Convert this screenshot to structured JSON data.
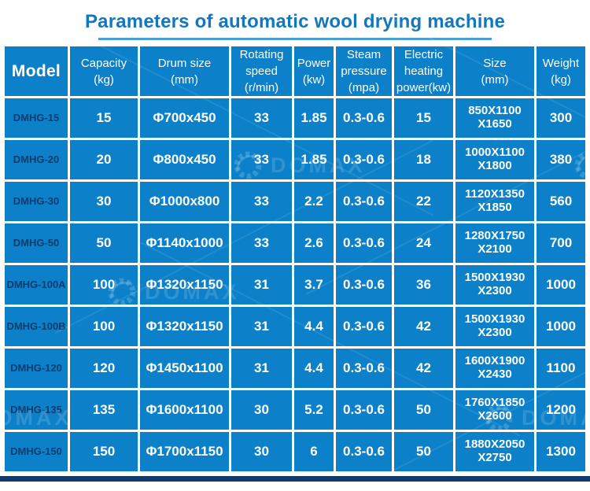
{
  "title": "Parameters of automatic wool drying machine",
  "watermark_text": "DOMAX",
  "colors": {
    "cell_blue": "#0c81c9",
    "model_text": "#0b3c6e",
    "header_text": "#ffffff",
    "title_blue": "#1377bd",
    "underline_blue": "#4aa0d8",
    "bottom_bar": "#0b3c70"
  },
  "chart_data": {
    "type": "table",
    "title": "Parameters of automatic wool drying machine",
    "columns": [
      {
        "key": "model",
        "label": "Model"
      },
      {
        "key": "capacity",
        "label": "Capacity\n(kg)"
      },
      {
        "key": "drum",
        "label": "Drum size\n(mm)"
      },
      {
        "key": "speed",
        "label": "Rotating\nspeed\n(r/min)"
      },
      {
        "key": "power",
        "label": "Power\n(kw)"
      },
      {
        "key": "steam",
        "label": "Steam\npressure\n(mpa)"
      },
      {
        "key": "heating",
        "label": "Electric\nheating\npower(kw)"
      },
      {
        "key": "size",
        "label": "Size\n(mm)"
      },
      {
        "key": "weight",
        "label": "Weight\n(kg)"
      }
    ],
    "rows": [
      {
        "model": "DMHG-15",
        "capacity": "15",
        "drum": "Φ700x450",
        "speed": "33",
        "power": "1.85",
        "steam": "0.3-0.6",
        "heating": "15",
        "size": "850X1100\nX1650",
        "weight": "300"
      },
      {
        "model": "DMHG-20",
        "capacity": "20",
        "drum": "Φ800x450",
        "speed": "33",
        "power": "1.85",
        "steam": "0.3-0.6",
        "heating": "18",
        "size": "1000X1100\nX1800",
        "weight": "380"
      },
      {
        "model": "DMHG-30",
        "capacity": "30",
        "drum": "Φ1000x800",
        "speed": "33",
        "power": "2.2",
        "steam": "0.3-0.6",
        "heating": "22",
        "size": "1120X1350\nX1850",
        "weight": "560"
      },
      {
        "model": "DMHG-50",
        "capacity": "50",
        "drum": "Φ1140x1000",
        "speed": "33",
        "power": "2.6",
        "steam": "0.3-0.6",
        "heating": "24",
        "size": "1280X1750\nX2100",
        "weight": "700"
      },
      {
        "model": "DMHG-100A",
        "capacity": "100",
        "drum": "Φ1320x1150",
        "speed": "31",
        "power": "3.7",
        "steam": "0.3-0.6",
        "heating": "36",
        "size": "1500X1930\nX2300",
        "weight": "1000"
      },
      {
        "model": "DMHG-100B",
        "capacity": "100",
        "drum": "Φ1320x1150",
        "speed": "31",
        "power": "4.4",
        "steam": "0.3-0.6",
        "heating": "42",
        "size": "1500X1930\nX2300",
        "weight": "1000"
      },
      {
        "model": "DMHG-120",
        "capacity": "120",
        "drum": "Φ1450x1100",
        "speed": "31",
        "power": "4.4",
        "steam": "0.3-0.6",
        "heating": "42",
        "size": "1600X1900\nX2430",
        "weight": "1100"
      },
      {
        "model": "DMHG-135",
        "capacity": "135",
        "drum": "Φ1600x1100",
        "speed": "30",
        "power": "5.2",
        "steam": "0.3-0.6",
        "heating": "50",
        "size": "1760X1850\nX2600",
        "weight": "1200"
      },
      {
        "model": "DMHG-150",
        "capacity": "150",
        "drum": "Φ1700x1150",
        "speed": "30",
        "power": "6",
        "steam": "0.3-0.6",
        "heating": "50",
        "size": "1880X2050\nX2750",
        "weight": "1300"
      }
    ]
  }
}
